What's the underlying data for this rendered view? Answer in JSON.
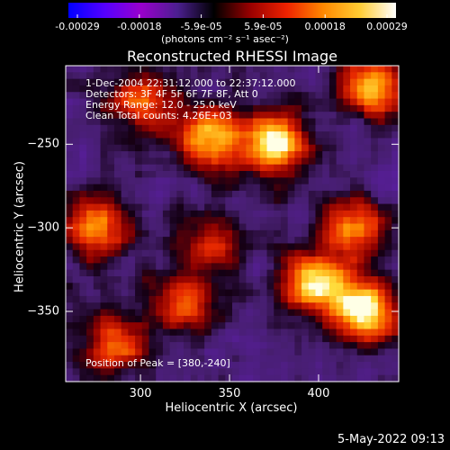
{
  "chart_data": {
    "type": "heatmap",
    "title": "Reconstructed RHESSI Image",
    "xlabel": "Heliocentric X (arcsec)",
    "ylabel": "Heliocentric Y (arcsec)",
    "xlim": [
      258,
      445
    ],
    "ylim": [
      -392,
      -203
    ],
    "x_ticks": [
      "300",
      "350",
      "400"
    ],
    "x_tick_values": [
      300,
      350,
      400
    ],
    "y_ticks": [
      "-250",
      "-300",
      "-350"
    ],
    "y_tick_values": [
      -250,
      -300,
      -350
    ],
    "colorbar": {
      "ticks": [
        "-0.00029",
        "-0.00018",
        "-5.9e-05",
        "5.9e-05",
        "0.00018",
        "0.00029"
      ],
      "unit_label": "(photons cm⁻² s⁻¹ asec⁻²)",
      "range": [
        -0.00029,
        0.00029
      ],
      "colormap": [
        "#0000ff",
        "#5500ff",
        "#9900cc",
        "#4b1f8f",
        "#000000",
        "#990000",
        "#ee2200",
        "#ff8800",
        "#ffcc33",
        "#ffffff"
      ]
    },
    "annotations": {
      "time": "1-Dec-2004 22:31:12.000 to 22:37:12.000",
      "detectors": "Detectors: 3F 4F 5F 6F 7F 8F, Att 0",
      "energy": "Energy Range: 12.0 - 25.0 keV",
      "clean": "Clean     Total counts: 4.26E+03",
      "peak": "Position of Peak = [380,-240]"
    },
    "peak": [
      380,
      -240
    ],
    "bright_sources": [
      {
        "x": 375,
        "y": -250,
        "v": 1.0
      },
      {
        "x": 398,
        "y": -333,
        "v": 0.9
      },
      {
        "x": 425,
        "y": -350,
        "v": 0.95
      },
      {
        "x": 430,
        "y": -215,
        "v": 0.85
      },
      {
        "x": 338,
        "y": -247,
        "v": 0.8
      },
      {
        "x": 275,
        "y": -300,
        "v": 0.7
      },
      {
        "x": 300,
        "y": -225,
        "v": 0.65
      },
      {
        "x": 285,
        "y": -370,
        "v": 0.65
      },
      {
        "x": 323,
        "y": -345,
        "v": 0.6
      },
      {
        "x": 420,
        "y": -300,
        "v": 0.7
      },
      {
        "x": 340,
        "y": -310,
        "v": 0.5
      }
    ]
  },
  "footer": {
    "date": "5-May-2022 09:13"
  }
}
